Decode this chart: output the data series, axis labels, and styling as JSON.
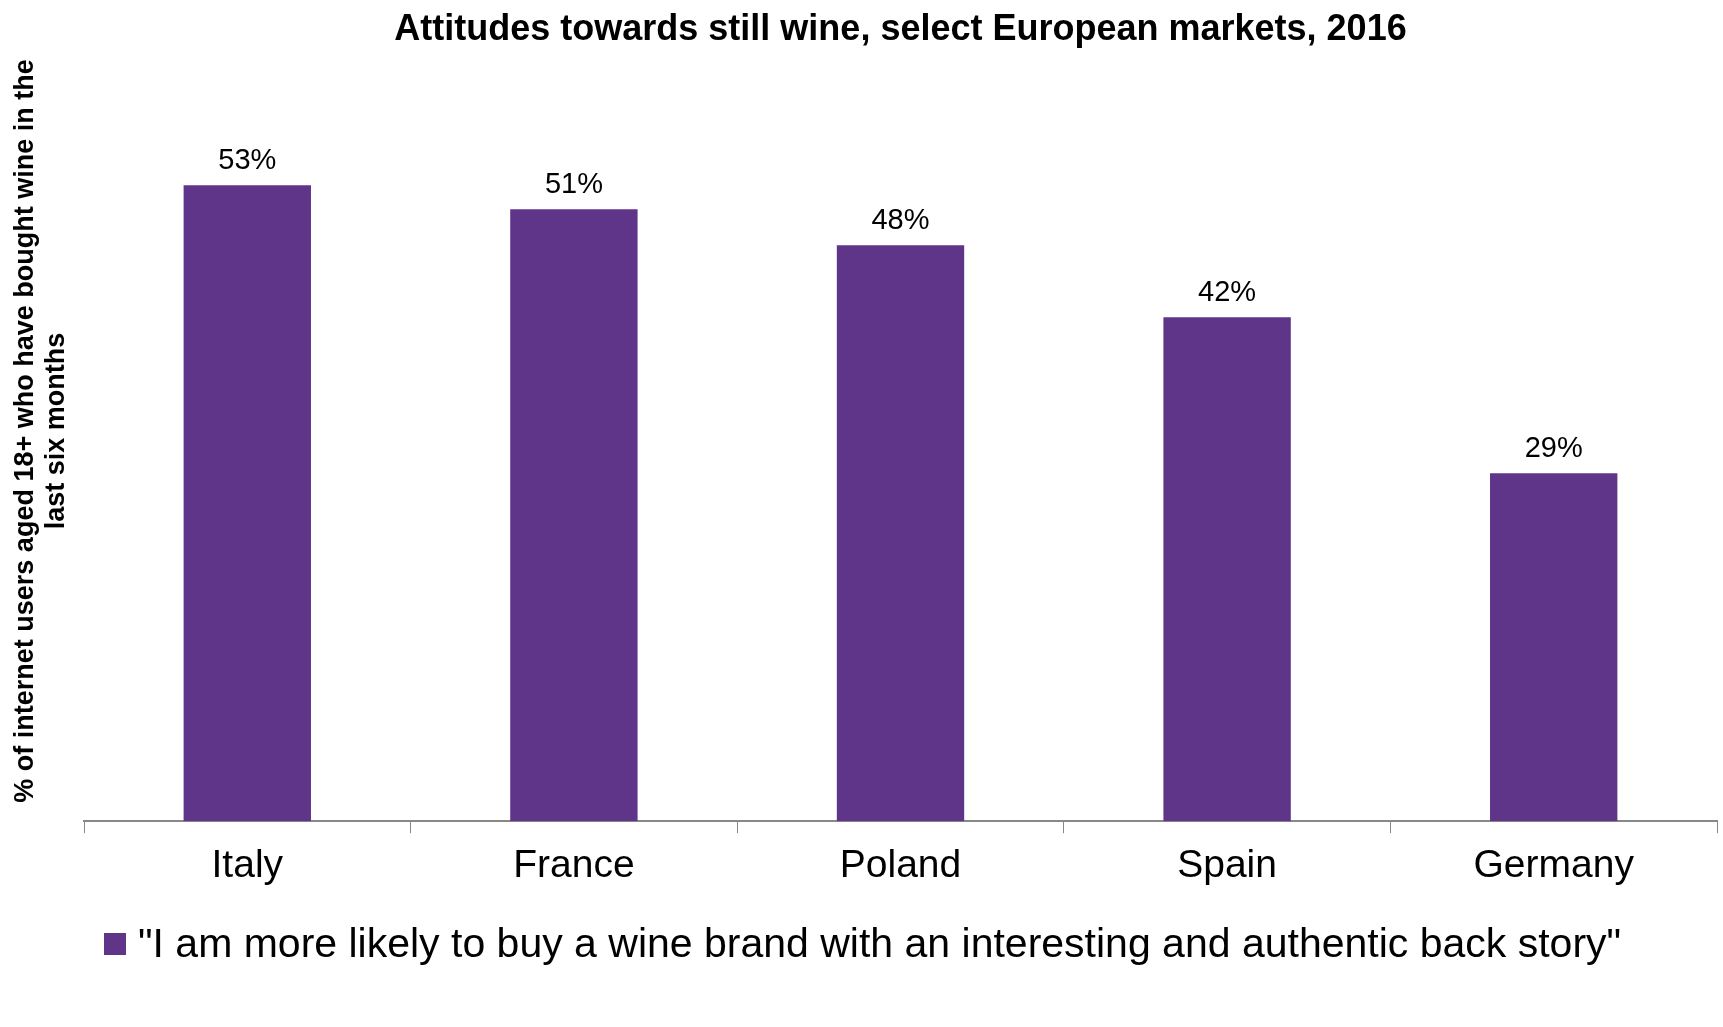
{
  "chart_data": {
    "type": "bar",
    "title": "Attitudes towards still wine, select European markets, 2016",
    "ylabel": "% of internet users aged 18+ who have bought wine in the last six months",
    "categories": [
      "Italy",
      "France",
      "Poland",
      "Spain",
      "Germany"
    ],
    "series": [
      {
        "name": "\"I am more likely to buy a wine brand with an interesting and authentic back story\"",
        "color": "#5f3589",
        "values": [
          53,
          51,
          48,
          42,
          29
        ],
        "value_labels": [
          "53%",
          "51%",
          "48%",
          "42%",
          "29%"
        ]
      }
    ],
    "legend": "bottom",
    "grid": false
  }
}
